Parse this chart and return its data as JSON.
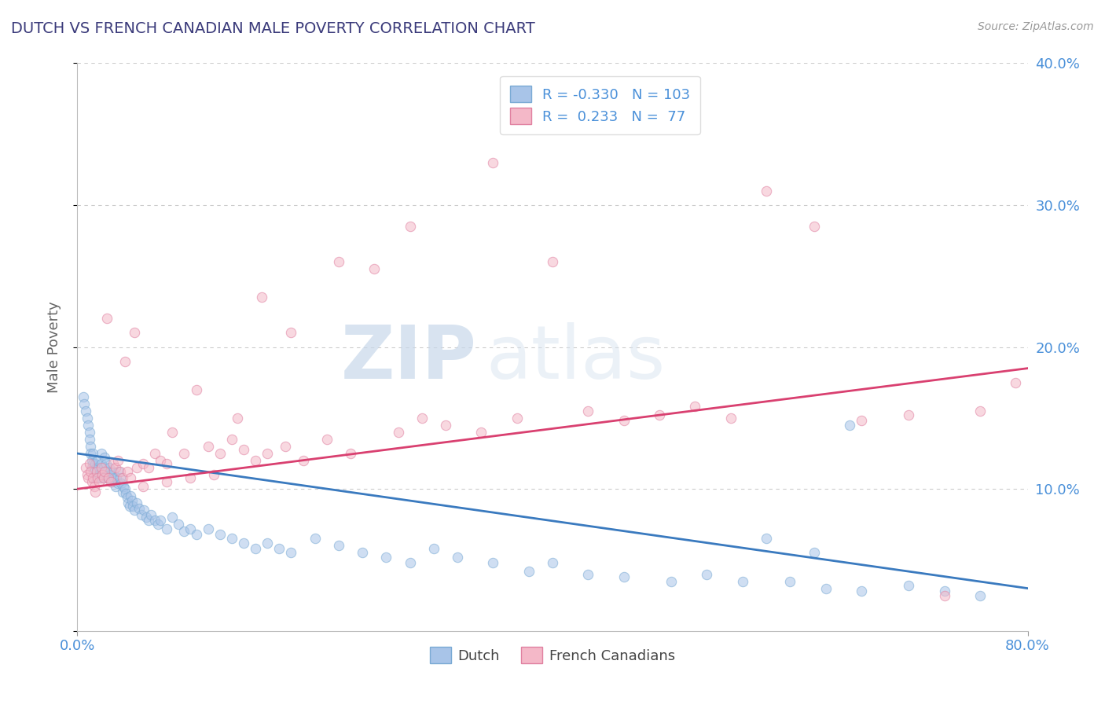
{
  "title": "DUTCH VS FRENCH CANADIAN MALE POVERTY CORRELATION CHART",
  "source": "Source: ZipAtlas.com",
  "ylabel": "Male Poverty",
  "x_min": 0.0,
  "x_max": 0.8,
  "y_min": 0.0,
  "y_max": 0.4,
  "y_ticks": [
    0.0,
    0.1,
    0.2,
    0.3,
    0.4
  ],
  "y_tick_labels_right": [
    "",
    "10.0%",
    "20.0%",
    "30.0%",
    "40.0%"
  ],
  "dutch_color": "#a8c4e8",
  "dutch_edge_color": "#7aaad4",
  "french_color": "#f4b8c8",
  "french_edge_color": "#e080a0",
  "dutch_line_color": "#3a7abf",
  "french_line_color": "#d94070",
  "dutch_R": -0.33,
  "dutch_N": 103,
  "french_R": 0.233,
  "french_N": 77,
  "dutch_line_x0": 0.0,
  "dutch_line_y0": 0.125,
  "dutch_line_x1": 0.8,
  "dutch_line_y1": 0.03,
  "french_line_x0": 0.0,
  "french_line_y0": 0.1,
  "french_line_x1": 0.8,
  "french_line_y1": 0.185,
  "dutch_scatter_x": [
    0.005,
    0.006,
    0.007,
    0.008,
    0.009,
    0.01,
    0.01,
    0.011,
    0.011,
    0.012,
    0.012,
    0.013,
    0.013,
    0.014,
    0.015,
    0.015,
    0.016,
    0.017,
    0.018,
    0.019,
    0.02,
    0.02,
    0.021,
    0.022,
    0.022,
    0.023,
    0.024,
    0.025,
    0.026,
    0.027,
    0.028,
    0.029,
    0.03,
    0.031,
    0.032,
    0.033,
    0.034,
    0.035,
    0.036,
    0.037,
    0.038,
    0.039,
    0.04,
    0.041,
    0.042,
    0.043,
    0.044,
    0.045,
    0.046,
    0.047,
    0.048,
    0.05,
    0.052,
    0.054,
    0.056,
    0.058,
    0.06,
    0.062,
    0.065,
    0.068,
    0.07,
    0.075,
    0.08,
    0.085,
    0.09,
    0.095,
    0.1,
    0.11,
    0.12,
    0.13,
    0.14,
    0.15,
    0.16,
    0.17,
    0.18,
    0.2,
    0.22,
    0.24,
    0.26,
    0.28,
    0.3,
    0.32,
    0.35,
    0.38,
    0.4,
    0.43,
    0.46,
    0.5,
    0.53,
    0.56,
    0.6,
    0.63,
    0.66,
    0.7,
    0.73,
    0.76,
    0.58,
    0.62,
    0.65
  ],
  "dutch_scatter_y": [
    0.165,
    0.16,
    0.155,
    0.15,
    0.145,
    0.14,
    0.135,
    0.13,
    0.125,
    0.12,
    0.115,
    0.125,
    0.118,
    0.112,
    0.108,
    0.118,
    0.115,
    0.12,
    0.11,
    0.108,
    0.125,
    0.118,
    0.112,
    0.108,
    0.115,
    0.122,
    0.118,
    0.112,
    0.108,
    0.115,
    0.11,
    0.105,
    0.112,
    0.108,
    0.102,
    0.108,
    0.104,
    0.112,
    0.108,
    0.104,
    0.098,
    0.102,
    0.1,
    0.097,
    0.094,
    0.09,
    0.088,
    0.095,
    0.092,
    0.088,
    0.085,
    0.09,
    0.086,
    0.082,
    0.085,
    0.08,
    0.078,
    0.082,
    0.078,
    0.075,
    0.078,
    0.072,
    0.08,
    0.075,
    0.07,
    0.072,
    0.068,
    0.072,
    0.068,
    0.065,
    0.062,
    0.058,
    0.062,
    0.058,
    0.055,
    0.065,
    0.06,
    0.055,
    0.052,
    0.048,
    0.058,
    0.052,
    0.048,
    0.042,
    0.048,
    0.04,
    0.038,
    0.035,
    0.04,
    0.035,
    0.035,
    0.03,
    0.028,
    0.032,
    0.028,
    0.025,
    0.065,
    0.055,
    0.145
  ],
  "french_scatter_x": [
    0.007,
    0.008,
    0.009,
    0.01,
    0.011,
    0.012,
    0.013,
    0.014,
    0.015,
    0.016,
    0.017,
    0.018,
    0.02,
    0.021,
    0.022,
    0.023,
    0.025,
    0.026,
    0.028,
    0.03,
    0.032,
    0.034,
    0.036,
    0.038,
    0.04,
    0.042,
    0.045,
    0.048,
    0.05,
    0.055,
    0.06,
    0.065,
    0.07,
    0.075,
    0.08,
    0.09,
    0.1,
    0.11,
    0.12,
    0.13,
    0.14,
    0.15,
    0.16,
    0.175,
    0.19,
    0.21,
    0.23,
    0.25,
    0.27,
    0.29,
    0.31,
    0.34,
    0.37,
    0.4,
    0.43,
    0.46,
    0.49,
    0.52,
    0.55,
    0.58,
    0.62,
    0.66,
    0.7,
    0.73,
    0.76,
    0.79,
    0.35,
    0.28,
    0.22,
    0.18,
    0.155,
    0.135,
    0.115,
    0.095,
    0.075,
    0.055
  ],
  "french_scatter_y": [
    0.115,
    0.11,
    0.108,
    0.118,
    0.112,
    0.105,
    0.108,
    0.102,
    0.098,
    0.112,
    0.108,
    0.105,
    0.115,
    0.11,
    0.108,
    0.112,
    0.22,
    0.108,
    0.105,
    0.118,
    0.115,
    0.12,
    0.112,
    0.108,
    0.19,
    0.112,
    0.108,
    0.21,
    0.115,
    0.118,
    0.115,
    0.125,
    0.12,
    0.118,
    0.14,
    0.125,
    0.17,
    0.13,
    0.125,
    0.135,
    0.128,
    0.12,
    0.125,
    0.13,
    0.12,
    0.135,
    0.125,
    0.255,
    0.14,
    0.15,
    0.145,
    0.14,
    0.15,
    0.26,
    0.155,
    0.148,
    0.152,
    0.158,
    0.15,
    0.31,
    0.285,
    0.148,
    0.152,
    0.025,
    0.155,
    0.175,
    0.33,
    0.285,
    0.26,
    0.21,
    0.235,
    0.15,
    0.11,
    0.108,
    0.105,
    0.102
  ],
  "watermark_zip": "ZIP",
  "watermark_atlas": "atlas",
  "background_color": "#ffffff",
  "grid_color": "#cccccc",
  "title_color": "#3a3a7a",
  "axis_label_color": "#666666",
  "tick_color": "#4a90d9",
  "legend_color": "#4a90d9",
  "dot_size": 80,
  "dot_alpha": 0.55,
  "dot_linewidth": 0.8
}
